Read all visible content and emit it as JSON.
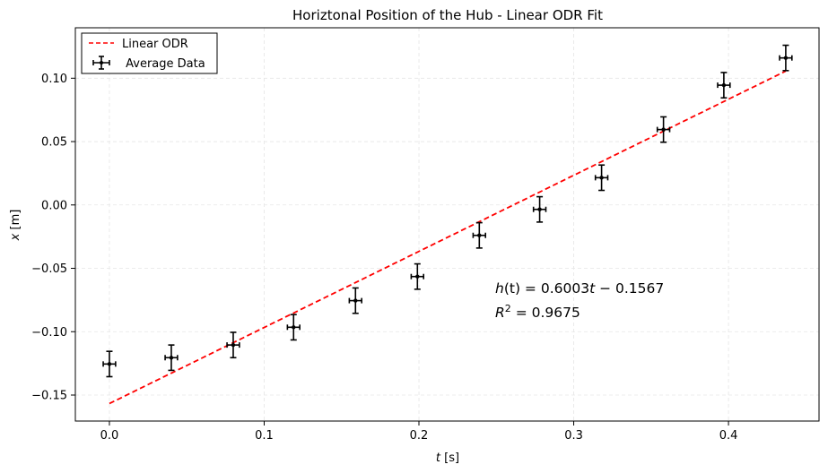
{
  "chart_data": {
    "type": "scatter",
    "title": "Horiztonal Position of the Hub - Linear ODR Fit",
    "xlabel_var": "t",
    "xlabel_unit": " [s]",
    "ylabel_var": "x",
    "ylabel_unit": " [m]",
    "xlim": [
      -0.022,
      0.4585
    ],
    "ylim": [
      -0.1705,
      0.1398
    ],
    "xticks": [
      0.0,
      0.1,
      0.2,
      0.3,
      0.4
    ],
    "xtick_labels": [
      "0.0",
      "0.1",
      "0.2",
      "0.3",
      "0.4"
    ],
    "yticks": [
      -0.15,
      -0.1,
      -0.05,
      0.0,
      0.05,
      0.1
    ],
    "ytick_labels": [
      "−0.15",
      "−0.10",
      "−0.05",
      "0.00",
      "0.05",
      "0.10"
    ],
    "grid": true,
    "legend_position": "top-left",
    "series": [
      {
        "name": " Average Data",
        "kind": "errorbar",
        "color": "#000000",
        "x": [
          0.0,
          0.04,
          0.08,
          0.119,
          0.159,
          0.199,
          0.239,
          0.278,
          0.318,
          0.358,
          0.397,
          0.437
        ],
        "y": [
          -0.1255,
          -0.1205,
          -0.1105,
          -0.0965,
          -0.0755,
          -0.0565,
          -0.024,
          -0.0035,
          0.0215,
          0.0595,
          0.0945,
          0.116
        ],
        "xerr": 0.004,
        "yerr": 0.01
      },
      {
        "name": "Linear ODR",
        "kind": "line",
        "color": "#ff0000",
        "dashed": true,
        "slope": 0.6003,
        "intercept": -0.1567,
        "x_range": [
          0.0,
          0.437
        ]
      }
    ],
    "annotations": {
      "equation_lhs": "h",
      "equation_arg": "(t)",
      "equation_rhs": " = 0.6003",
      "equation_t": "t",
      "equation_tail": " − 0.1567",
      "r2_base": "R",
      "r2_exp": "2",
      "r2_tail": " = 0.9675"
    }
  }
}
